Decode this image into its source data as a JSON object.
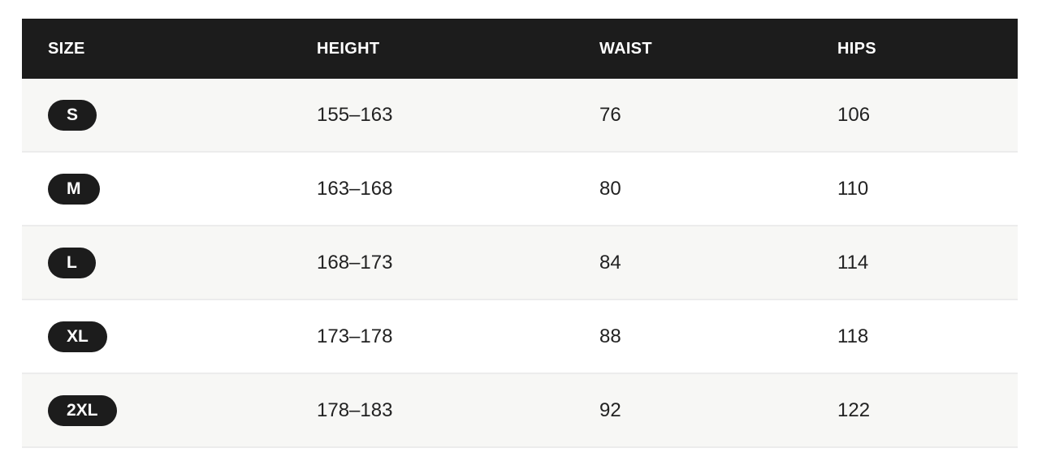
{
  "headers": {
    "size": "SIZE",
    "height": "HEIGHT",
    "waist": "WAIST",
    "hips": "HIPS"
  },
  "rows": [
    {
      "size": "S",
      "height": "155–163",
      "waist": "76",
      "hips": "106"
    },
    {
      "size": "M",
      "height": "163–168",
      "waist": "80",
      "hips": "110"
    },
    {
      "size": "L",
      "height": "168–173",
      "waist": "84",
      "hips": "114"
    },
    {
      "size": "XL",
      "height": "173–178",
      "waist": "88",
      "hips": "118"
    },
    {
      "size": "2XL",
      "height": "178–183",
      "waist": "92",
      "hips": "122"
    }
  ]
}
